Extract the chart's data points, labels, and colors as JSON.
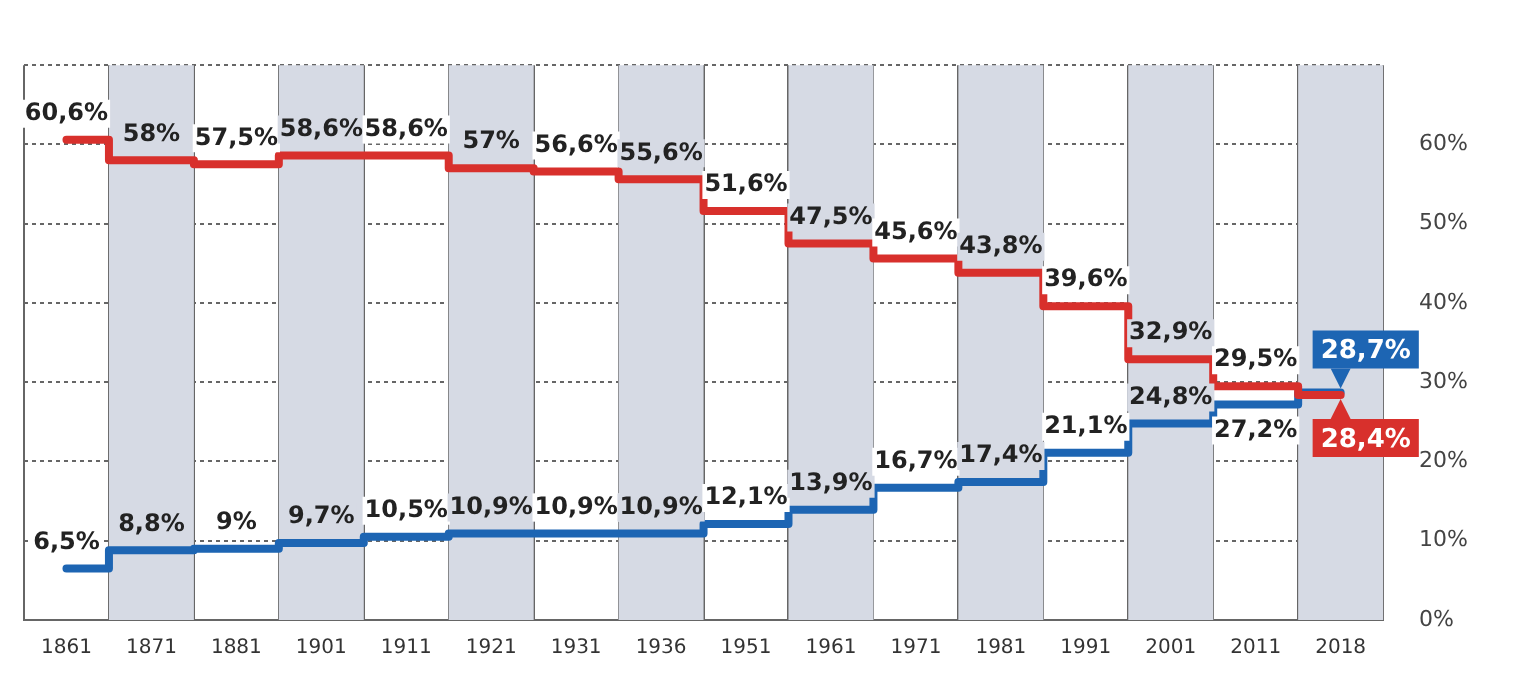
{
  "chart_data": {
    "type": "step",
    "categories": [
      "1861",
      "1871",
      "1881",
      "1901",
      "1911",
      "1921",
      "1931",
      "1936",
      "1951",
      "1961",
      "1971",
      "1981",
      "1991",
      "2001",
      "2011",
      "2018"
    ],
    "series": [
      {
        "color": "#d8302c",
        "values": [
          60.6,
          58,
          57.5,
          58.6,
          58.6,
          57,
          56.6,
          55.6,
          51.6,
          47.5,
          45.6,
          43.8,
          39.6,
          32.9,
          29.5,
          28.4
        ],
        "value_labels": [
          "60,6%",
          "58%",
          "57,5%",
          "58,6%",
          "58,6%",
          "57%",
          "56,6%",
          "55,6%",
          "51,6%",
          "47,5%",
          "45,6%",
          "43,8%",
          "39,6%",
          "32,9%",
          "29,5%",
          "28,4%"
        ]
      },
      {
        "color": "#1d65b3",
        "values": [
          6.5,
          8.8,
          9,
          9.7,
          10.5,
          10.9,
          10.9,
          10.9,
          12.1,
          13.9,
          16.7,
          17.4,
          21.1,
          24.8,
          27.2,
          28.7
        ],
        "value_labels": [
          "6,5%",
          "8,8%",
          "9%",
          "9,7%",
          "10,5%",
          "10,9%",
          "10,9%",
          "10,9%",
          "12,1%",
          "13,9%",
          "16,7%",
          "17,4%",
          "21,1%",
          "24,8%",
          "27,2%",
          "28,7%"
        ]
      }
    ],
    "ylim": [
      0,
      70
    ],
    "yticks": [
      {
        "value": 0,
        "label": "0%"
      },
      {
        "value": 10,
        "label": "10%"
      },
      {
        "value": 20,
        "label": "20%"
      },
      {
        "value": 30,
        "label": "30%"
      },
      {
        "value": 40,
        "label": "40%"
      },
      {
        "value": 50,
        "label": "50%"
      },
      {
        "value": 60,
        "label": "60%"
      },
      {
        "value": 70,
        "label": null
      }
    ],
    "grid": true,
    "legend": false,
    "marker": "none",
    "line_style": "solid",
    "bands": [
      {
        "axis": "x",
        "from": "1871",
        "to": "1871",
        "color": "#d6dae4"
      },
      {
        "axis": "x",
        "from": "1901",
        "to": "1901",
        "color": "#d6dae4"
      },
      {
        "axis": "x",
        "from": "1921",
        "to": "1921",
        "color": "#d6dae4"
      },
      {
        "axis": "x",
        "from": "1936",
        "to": "1936",
        "color": "#d6dae4"
      },
      {
        "axis": "x",
        "from": "1961",
        "to": "1961",
        "color": "#d6dae4"
      },
      {
        "axis": "x",
        "from": "1981",
        "to": "1981",
        "color": "#d6dae4"
      },
      {
        "axis": "x",
        "from": "2001",
        "to": "2001",
        "color": "#d6dae4"
      },
      {
        "axis": "x",
        "from": "2018",
        "to": "2018",
        "color": "#d6dae4"
      }
    ]
  }
}
